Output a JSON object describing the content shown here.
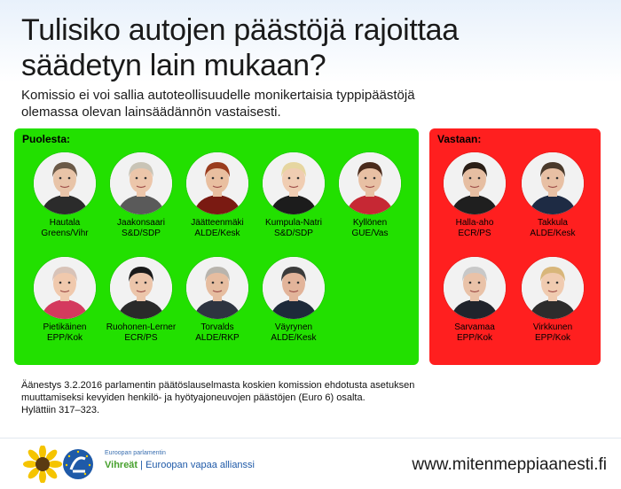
{
  "title_line1": "Tulisiko autojen päästöjä rajoittaa",
  "title_line2": "säädetyn lain mukaan?",
  "subtitle_line1": "Komissio ei voi sallia autoteollisuudelle monikertaisia typpipäästöjä",
  "subtitle_line2": "olemassa olevan lainsäädännön vastaisesti.",
  "for_heading": "Puolesta:",
  "against_heading": "Vastaan:",
  "for_people": [
    {
      "name": "Hautala",
      "party": "Greens/Vihr",
      "hair": "#6b5a48",
      "skin": "#e8c4a8",
      "top": "#2b2b2b"
    },
    {
      "name": "Jaakonsaari",
      "party": "S&D/SDP",
      "hair": "#c9c4b6",
      "skin": "#ecc6aa",
      "top": "#5a5a5a"
    },
    {
      "name": "Jäätteenmäki",
      "party": "ALDE/Kesk",
      "hair": "#9a3c1e",
      "skin": "#e9bfa0",
      "top": "#7a1a12"
    },
    {
      "name": "Kumpula-Natri",
      "party": "S&D/SDP",
      "hair": "#e6d6a0",
      "skin": "#f0cdb2",
      "top": "#1c1c1c"
    },
    {
      "name": "Kyllönen",
      "party": "GUE/Vas",
      "hair": "#4a2b1c",
      "skin": "#e8c0a4",
      "top": "#c62834"
    },
    {
      "name": "Pietikäinen",
      "party": "EPP/Kok",
      "hair": "#d8c3b8",
      "skin": "#f0c9ad",
      "top": "#d43a5e"
    },
    {
      "name": "Ruohonen-Lerner",
      "party": "ECR/PS",
      "hair": "#1a1a1a",
      "skin": "#ecc5aa",
      "top": "#2a2a2a"
    },
    {
      "name": "Torvalds",
      "party": "ALDE/RKP",
      "hair": "#b8b4ad",
      "skin": "#e6bda0",
      "top": "#2e3440"
    },
    {
      "name": "Väyrynen",
      "party": "ALDE/Kesk",
      "hair": "#3b3b3b",
      "skin": "#e2b49a",
      "top": "#1e2a3a"
    }
  ],
  "against_people": [
    {
      "name": "Halla-aho",
      "party": "ECR/PS",
      "hair": "#2a1e16",
      "skin": "#e6bea2",
      "top": "#1f1f1f"
    },
    {
      "name": "Takkula",
      "party": "ALDE/Kesk",
      "hair": "#4a3a2c",
      "skin": "#e8c0a4",
      "top": "#1e2b44"
    },
    {
      "name": "Sarvamaa",
      "party": "EPP/Kok",
      "hair": "#c8c8c8",
      "skin": "#e9c2a8",
      "top": "#20242c"
    },
    {
      "name": "Virkkunen",
      "party": "EPP/Kok",
      "hair": "#d8b67a",
      "skin": "#f0cbb0",
      "top": "#2c2c2c"
    }
  ],
  "vote_line1": "Äänestys 3.2.2016 parlamentin päätöslauselmasta koskien komission ehdotusta asetuksen",
  "vote_line2": "muuttamiseksi kevyiden henkilö- ja hyötyajoneuvojen päästöjen (Euro 6) osalta.",
  "vote_line3": "Hylättiin 317–323.",
  "logo_small": "Euroopan parlamentin",
  "logo_green": "Vihreät",
  "logo_sep": " | ",
  "logo_blue": "Euroopan vapaa allianssi",
  "website": "www.mitenmeppiaanesti.fi",
  "colors": {
    "for_panel": "#22e000",
    "against_panel": "#ff1f1f"
  }
}
